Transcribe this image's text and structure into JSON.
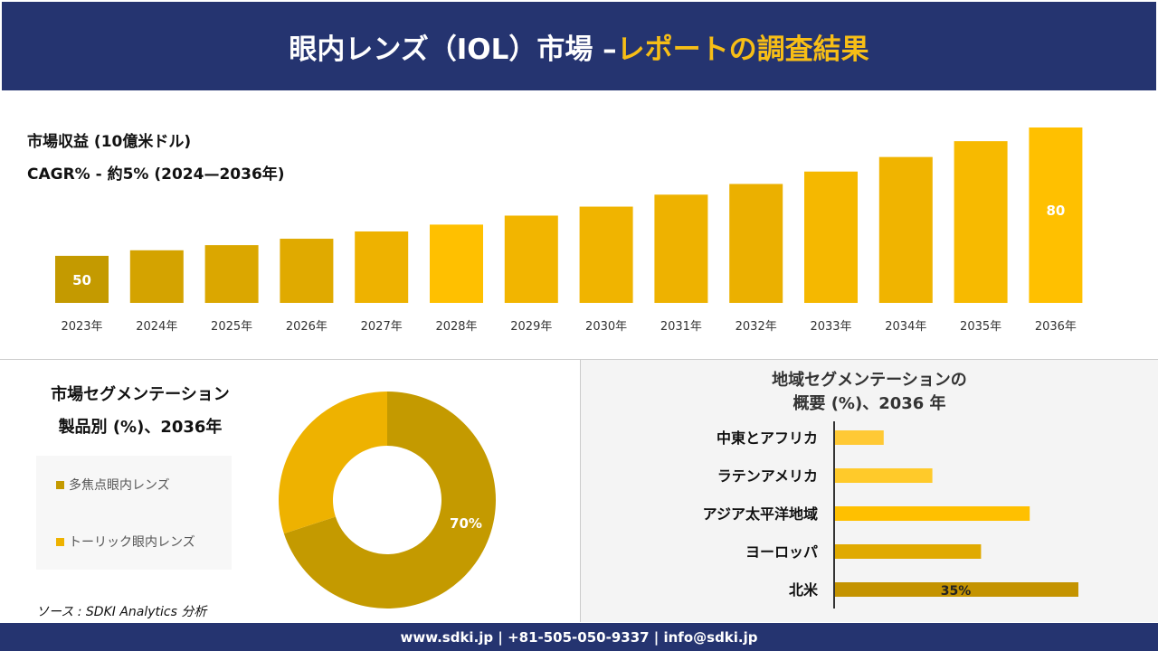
{
  "header": {
    "title_main": "眼内レンズ（IOL）市場 –",
    "title_accent": "レポートの調査結果"
  },
  "revenue": {
    "label": "市場収益 (10億米ドル)",
    "cagr": "CAGR% - 約5% (2024—2036年)"
  },
  "chart_data": [
    {
      "type": "bar",
      "categories": [
        "2023年",
        "2024年",
        "2025年",
        "2026年",
        "2027年",
        "2028年",
        "2029年",
        "2030年",
        "2031年",
        "2032年",
        "2033年",
        "2034年",
        "2035年",
        "2036年"
      ],
      "values": [
        50,
        51.3,
        52.5,
        54,
        55.7,
        57.3,
        59.4,
        61.5,
        64.3,
        66.8,
        69.7,
        73.1,
        76.8,
        80
      ],
      "data_labels": {
        "0": "50",
        "13": "80"
      },
      "colors": [
        "#c49a00",
        "#d4a300",
        "#dba700",
        "#e0aa00",
        "#eeb200",
        "#ffc000",
        "#f2b500",
        "#f0b400",
        "#eeb200",
        "#ebb000",
        "#f5b800",
        "#f0b400",
        "#f7ba00",
        "#ffc000"
      ],
      "ylim": [
        39,
        80
      ]
    },
    {
      "type": "pie",
      "title": "市場セグメンテーション 製品別 (%)、2036年",
      "labels": [
        "多焦点眼内レンズ",
        "トーリック眼内レンズ"
      ],
      "values": [
        70,
        30
      ],
      "colors": [
        "#c49a00",
        "#eeb200"
      ],
      "data_labels": [
        "70%",
        ""
      ]
    },
    {
      "type": "bar",
      "orientation": "horizontal",
      "title": "地域セグメンテーションの 概要 (%)、2036 年",
      "categories": [
        "中東とアフリカ",
        "ラテンアメリカ",
        "アジア太平洋地域",
        "ヨーロッパ",
        "北米"
      ],
      "values": [
        7,
        14,
        28,
        21,
        35
      ],
      "data_labels": [
        "",
        "",
        "",
        "",
        "35%"
      ],
      "colors": [
        "#ffc935",
        "#ffca2a",
        "#ffc000",
        "#e0aa00",
        "#c49300"
      ]
    }
  ],
  "segment": {
    "title1": "市場セグメンテーション",
    "title2": "製品別 (%)、2036年"
  },
  "region": {
    "title1": "地域セグメンテーションの",
    "title2": "概要 (%)、2036 年"
  },
  "source": "ソース : SDKI Analytics 分析",
  "footer": "www.sdki.jp | +81-505-050-9337 | info@sdki.jp"
}
